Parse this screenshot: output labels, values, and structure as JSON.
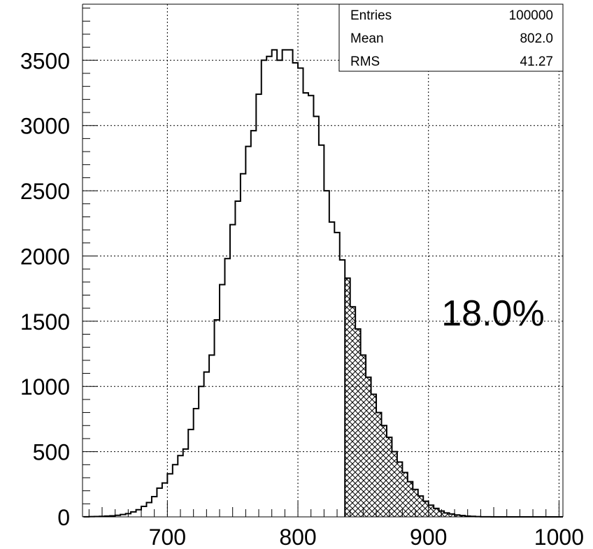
{
  "chart_data": {
    "type": "histogram",
    "title": "",
    "xlabel": "",
    "ylabel": "",
    "xlim": [
      635,
      1003
    ],
    "ylim": [
      0,
      3930
    ],
    "x_ticks": [
      700,
      800,
      900,
      1000
    ],
    "y_ticks": [
      0,
      500,
      1000,
      1500,
      2000,
      2500,
      3000,
      3500
    ],
    "grid": true,
    "bin_width": 4,
    "bins_start": 636,
    "values": [
      1,
      2,
      3,
      4,
      6,
      8,
      12,
      18,
      25,
      38,
      55,
      80,
      110,
      155,
      220,
      260,
      330,
      400,
      470,
      520,
      670,
      830,
      1000,
      1110,
      1240,
      1510,
      1780,
      1980,
      2240,
      2420,
      2630,
      2840,
      2960,
      3240,
      3500,
      3530,
      3580,
      3500,
      3580,
      3580,
      3480,
      3440,
      3250,
      3230,
      3070,
      2850,
      2500,
      2260,
      2180,
      1970,
      1830,
      1610,
      1440,
      1240,
      1070,
      940,
      800,
      700,
      610,
      500,
      420,
      340,
      270,
      210,
      160,
      120,
      90,
      65,
      45,
      30,
      22,
      15,
      10,
      6,
      4,
      2,
      1,
      1,
      0,
      0,
      0,
      0,
      0,
      0,
      0,
      0,
      0,
      0,
      0,
      0,
      0,
      0
    ],
    "shaded_from": 836,
    "shade_pattern": "crosshatch",
    "stats": [
      {
        "label": "Entries",
        "value": "100000"
      },
      {
        "label": "Mean",
        "value": "802.0"
      },
      {
        "label": "RMS",
        "value": "41.27"
      }
    ],
    "annotation": "18.0%"
  }
}
